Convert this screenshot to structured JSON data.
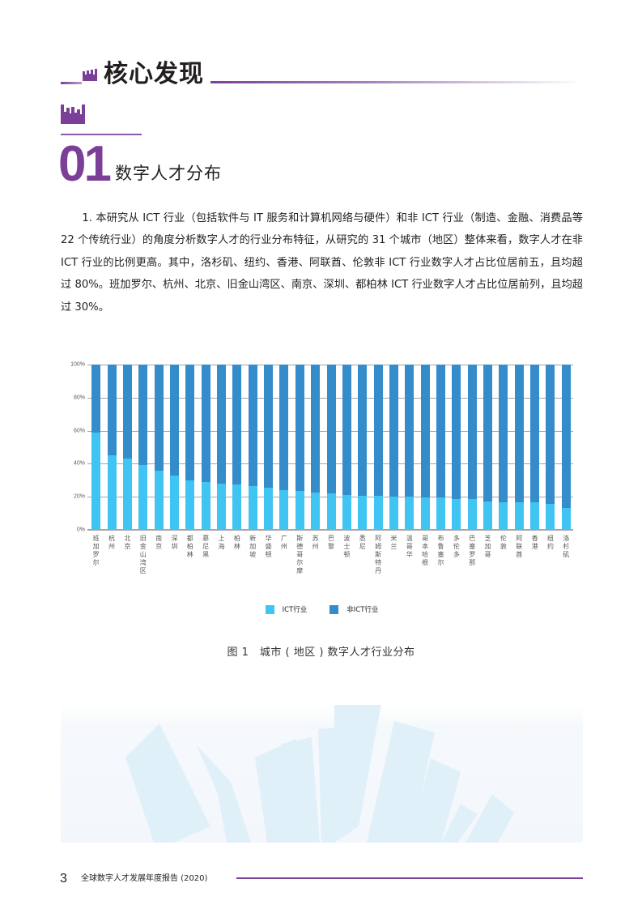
{
  "header": {
    "title": "核心发现",
    "accent_color": "#7b3f98"
  },
  "section": {
    "number": "01",
    "title": "数字人才分布"
  },
  "body": {
    "paragraph": "1. 本研究从 ICT 行业（包括软件与 IT 服务和计算机网络与硬件）和非 ICT 行业（制造、金融、消费品等 22 个传统行业）的角度分析数字人才的行业分布特征，从研究的 31 个城市（地区）整体来看，数字人才在非 ICT 行业的比例更高。其中，洛杉矶、纽约、香港、阿联酋、伦敦非 ICT 行业数字人才占比位居前五，且均超过 80%。班加罗尔、杭州、北京、旧金山湾区、南京、深圳、都柏林 ICT 行业数字人才占比位居前列，且均超过 30%。"
  },
  "chart_data": {
    "type": "bar",
    "stacked": true,
    "percent_stacked": true,
    "title": "图 1　城市 ( 地区 ) 数字人才行业分布",
    "xlabel": "",
    "ylabel": "",
    "ylim": [
      0,
      100
    ],
    "yticks": [
      "0%",
      "20%",
      "40%",
      "60%",
      "80%",
      "100%"
    ],
    "grid": true,
    "legend_position": "bottom",
    "categories": [
      "班加罗尔",
      "杭州",
      "北京",
      "旧金山湾区",
      "南京",
      "深圳",
      "都柏林",
      "慕尼黑",
      "上海",
      "柏林",
      "新加坡",
      "华盛顿",
      "广州",
      "斯德哥尔摩",
      "苏州",
      "巴黎",
      "波士顿",
      "悉尼",
      "阿姆斯特丹",
      "米兰",
      "温哥华",
      "哥本哈根",
      "布鲁塞尔",
      "多伦多",
      "巴塞罗那",
      "芝加哥",
      "伦敦",
      "阿联酋",
      "香港",
      "纽约",
      "洛杉矶"
    ],
    "series": [
      {
        "name": "ICT行业",
        "color": "#40c4f2",
        "values": [
          59,
          45,
          43,
          39,
          36,
          33,
          30,
          29,
          28,
          27.5,
          26.5,
          25.5,
          24,
          23.5,
          22.5,
          22,
          21,
          20.5,
          20.5,
          20,
          20,
          19.8,
          19.7,
          18.7,
          18.6,
          17.2,
          16.8,
          16.7,
          16.6,
          15.7,
          13.3
        ]
      },
      {
        "name": "非ICT行业",
        "color": "#358ccb",
        "values": [
          41,
          55,
          57,
          61,
          64,
          67,
          70,
          71,
          72,
          72.5,
          73.5,
          74.5,
          76,
          76.5,
          77.5,
          78,
          79,
          79.5,
          79.5,
          80,
          80,
          80.2,
          80.3,
          81.3,
          81.4,
          82.8,
          83.2,
          83.3,
          83.4,
          84.3,
          86.7
        ]
      }
    ]
  },
  "legend": {
    "ict": "ICT行业",
    "non_ict": "非ICT行业"
  },
  "caption": "图 1　城市 ( 地区 ) 数字人才行业分布",
  "footer": {
    "page_number": "3",
    "report_title": "全球数字人才发展年度报告 (2020)"
  }
}
